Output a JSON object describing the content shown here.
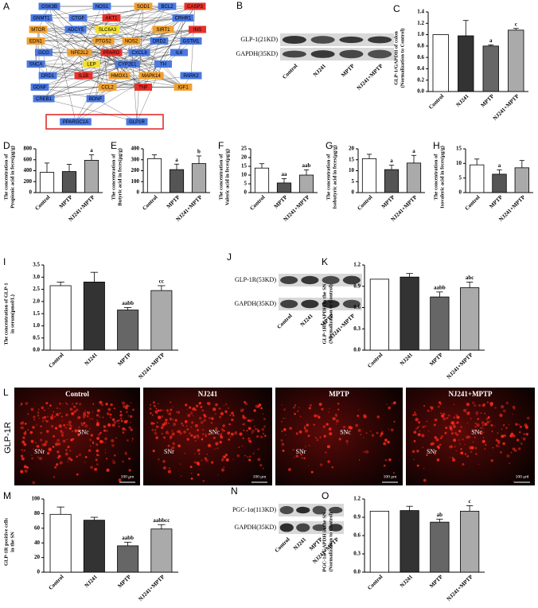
{
  "network": {
    "label": "A",
    "nodes": [
      {
        "name": "GSK3B",
        "color": "#4a78e0"
      },
      {
        "name": "NOS1",
        "color": "#4a78e0"
      },
      {
        "name": "SOD1",
        "color": "#f0a030"
      },
      {
        "name": "BCL2",
        "color": "#4a78e0"
      },
      {
        "name": "CASP3",
        "color": "#e8302a"
      },
      {
        "name": "GNMT1",
        "color": "#4a78e0"
      },
      {
        "name": "CTGF",
        "color": "#4a78e0"
      },
      {
        "name": "AKT1",
        "color": "#e8302a"
      },
      {
        "name": "CRHR1",
        "color": "#4a78e0"
      },
      {
        "name": "MTOR",
        "color": "#f0a030"
      },
      {
        "name": "ADCY5",
        "color": "#4a78e0"
      },
      {
        "name": "SLC6A3",
        "color": "#f2e030"
      },
      {
        "name": "SIRT1",
        "color": "#f0a030"
      },
      {
        "name": "INS",
        "color": "#e8302a"
      },
      {
        "name": "EDN1",
        "color": "#f0a030"
      },
      {
        "name": "PTGS2",
        "color": "#f0a030"
      },
      {
        "name": "NOS2",
        "color": "#f0a030"
      },
      {
        "name": "DRD2",
        "color": "#4a78e0"
      },
      {
        "name": "GSTM1",
        "color": "#4a78e0"
      },
      {
        "name": "GCG",
        "color": "#4a78e0"
      },
      {
        "name": "NFE2L2",
        "color": "#f0a030"
      },
      {
        "name": "PPARG",
        "color": "#e8302a"
      },
      {
        "name": "CXCL8",
        "color": "#4a78e0"
      },
      {
        "name": "IL6",
        "color": "#4a78e0"
      },
      {
        "name": "SNCA",
        "color": "#4a78e0"
      },
      {
        "name": "LEP",
        "color": "#f2e030"
      },
      {
        "name": "CYP2E1",
        "color": "#4a78e0"
      },
      {
        "name": "TH",
        "color": "#4a78e0"
      },
      {
        "name": "DRD1",
        "color": "#4a78e0"
      },
      {
        "name": "IL1B",
        "color": "#e8302a"
      },
      {
        "name": "HMOX1",
        "color": "#f0a030"
      },
      {
        "name": "MAPK14",
        "color": "#f0a030"
      },
      {
        "name": "PARK2",
        "color": "#4a78e0"
      },
      {
        "name": "GDNF",
        "color": "#4a78e0"
      },
      {
        "name": "CCL2",
        "color": "#f0a030"
      },
      {
        "name": "TNF",
        "color": "#e8302a"
      },
      {
        "name": "IGF1",
        "color": "#f0a030"
      },
      {
        "name": "CREB1",
        "color": "#4a78e0"
      },
      {
        "name": "BDNF",
        "color": "#4a78e0"
      },
      {
        "name": "PPARGC1A",
        "color": "#4a78e0"
      },
      {
        "name": "GLP1R",
        "color": "#4a78e0"
      }
    ]
  },
  "blots": [
    {
      "label": "B",
      "rows": [
        "GLP-1(21KD)",
        "GAPDH(35KD)"
      ],
      "lanes": [
        "Control",
        "NJ241",
        "MPTP",
        "NJ241+MPTP"
      ]
    },
    {
      "label": "J",
      "rows": [
        "GLP-1R(53KD)",
        "GAPDH(35KD)"
      ],
      "lanes": [
        "Control",
        "NJ241",
        "MPTP",
        "NJ241+MPTP"
      ]
    },
    {
      "label": "N",
      "rows": [
        "PGC-1α(113KD)",
        "GAPDH(35KD)"
      ],
      "lanes": [
        "Control",
        "NJ241",
        "MPTP",
        "NJ241+MPTP"
      ]
    }
  ],
  "images": {
    "label": "L",
    "row_label": "GLP-1R",
    "panels": [
      {
        "title": "Control",
        "regions": [
          "SNc",
          "SNr"
        ],
        "scale": "100 μm"
      },
      {
        "title": "NJ241",
        "regions": [
          "SNc",
          "SNr"
        ],
        "scale": "100 μm"
      },
      {
        "title": "MPTP",
        "regions": [
          "SNc",
          "SNr"
        ],
        "scale": "100 μm"
      },
      {
        "title": "NJ241+MPTP",
        "regions": [
          "SNc",
          "SNr"
        ],
        "scale": "100 μm"
      }
    ]
  },
  "chart_data": [
    {
      "type": "bar",
      "label": "C",
      "ylabel": [
        "GLP-1/GAPDH of colon",
        "(Normalization to Control)"
      ],
      "categories": [
        "Control",
        "NJ241",
        "MPTP",
        "NJ241+MPTP"
      ],
      "values": [
        1.0,
        0.98,
        0.8,
        1.08
      ],
      "errors": [
        null,
        0.27,
        0.02,
        0.03
      ],
      "annotations": [
        null,
        null,
        "a",
        "c"
      ],
      "colors": [
        "#ffffff",
        "#333333",
        "#666666",
        "#aaaaaa"
      ],
      "ylim": [
        0,
        1.4
      ],
      "yticks": [
        {
          "value": 0,
          "label": "0.0"
        },
        {
          "value": 0.2,
          "label": "0.2"
        },
        {
          "value": 0.4,
          "label": "0.4"
        },
        {
          "value": 0.6,
          "label": "0.6"
        },
        {
          "value": 0.8,
          "label": "0.8"
        },
        {
          "value": 1.0,
          "label": "1.0"
        },
        {
          "value": 1.2,
          "label": "1.2"
        },
        {
          "value": 1.4,
          "label": "1.4"
        }
      ]
    },
    {
      "type": "bar",
      "label": "D",
      "ylabel": [
        "The concentration of",
        "Propionic acid in feces(μg/g)"
      ],
      "categories": [
        "Control",
        "MPTP",
        "NJ241+MPTP"
      ],
      "values": [
        370,
        385,
        590
      ],
      "errors": [
        170,
        130,
        100
      ],
      "annotations": [
        null,
        null,
        "a"
      ],
      "colors": [
        "#ffffff",
        "#555555",
        "#aaaaaa"
      ],
      "ylim": [
        0,
        800
      ],
      "yticks": [
        0,
        200,
        400,
        600,
        800
      ]
    },
    {
      "type": "bar",
      "label": "E",
      "ylabel": [
        "The concentration of",
        "Butyric acid in feces(μg/g)"
      ],
      "categories": [
        "Control",
        "MPTP",
        "NJ241+MPTP"
      ],
      "values": [
        310,
        210,
        265
      ],
      "errors": [
        35,
        50,
        70
      ],
      "annotations": [
        null,
        "a",
        "b"
      ],
      "colors": [
        "#ffffff",
        "#555555",
        "#aaaaaa"
      ],
      "ylim": [
        0,
        400
      ],
      "yticks": [
        0,
        100,
        200,
        300,
        400
      ]
    },
    {
      "type": "bar",
      "label": "F",
      "ylabel": [
        "The concentration of",
        "Valeric acid in feces(μg/g)"
      ],
      "categories": [
        "Control",
        "MPTP",
        "NJ241+MPTP"
      ],
      "values": [
        14,
        5.5,
        10
      ],
      "errors": [
        2.5,
        2.5,
        3
      ],
      "annotations": [
        null,
        "aa",
        "aab"
      ],
      "colors": [
        "#ffffff",
        "#555555",
        "#aaaaaa"
      ],
      "ylim": [
        0,
        25
      ],
      "yticks": [
        0,
        5,
        10,
        15,
        20,
        25
      ]
    },
    {
      "type": "bar",
      "label": "G",
      "ylabel": [
        "The concentration of",
        "Isobutyric acid in feces(μg/g)"
      ],
      "categories": [
        "Control",
        "MPTP",
        "NJ241+MPTP"
      ],
      "values": [
        15.5,
        10.5,
        13.5
      ],
      "errors": [
        2,
        2,
        3.5
      ],
      "annotations": [
        null,
        "a",
        "a"
      ],
      "colors": [
        "#ffffff",
        "#555555",
        "#aaaaaa"
      ],
      "ylim": [
        0,
        20
      ],
      "yticks": [
        0,
        5,
        10,
        15,
        20
      ]
    },
    {
      "type": "bar",
      "label": "H",
      "ylabel": [
        "The concentration of",
        "Isovaleric acid in feces(μg/g)"
      ],
      "categories": [
        "Control",
        "MPTP",
        "NJ241+MPTP"
      ],
      "values": [
        9.5,
        6.3,
        8.5
      ],
      "errors": [
        2,
        1.5,
        2.5
      ],
      "annotations": [
        null,
        "a",
        null
      ],
      "colors": [
        "#ffffff",
        "#555555",
        "#aaaaaa"
      ],
      "ylim": [
        0,
        15
      ],
      "yticks": [
        0,
        5,
        10,
        15
      ]
    },
    {
      "type": "bar",
      "label": "I",
      "ylabel": [
        "The concentration of GLP-1",
        "in serum(pmol/L)"
      ],
      "categories": [
        "Control",
        "NJ241",
        "MPTP",
        "NJ241+MPTP"
      ],
      "values": [
        2.65,
        2.8,
        1.65,
        2.45
      ],
      "errors": [
        0.15,
        0.4,
        0.1,
        0.2
      ],
      "annotations": [
        null,
        null,
        "aabb",
        "cc"
      ],
      "colors": [
        "#ffffff",
        "#333333",
        "#666666",
        "#aaaaaa"
      ],
      "ylim": [
        0,
        3.5
      ],
      "yticks": [
        {
          "value": 0,
          "label": "0.0"
        },
        {
          "value": 0.5,
          "label": "0.5"
        },
        {
          "value": 1.0,
          "label": "1.0"
        },
        {
          "value": 1.5,
          "label": "1.5"
        },
        {
          "value": 2.0,
          "label": "2.0"
        },
        {
          "value": 2.5,
          "label": "2.5"
        },
        {
          "value": 3.0,
          "label": "3.0"
        },
        {
          "value": 3.5,
          "label": "3.5"
        }
      ]
    },
    {
      "type": "bar",
      "label": "K",
      "ylabel": [
        "GLP-1R/GAPDH in the SN",
        "(Normalization to Control)"
      ],
      "categories": [
        "Control",
        "NJ241",
        "MPTP",
        "NJ241+MPTP"
      ],
      "values": [
        1.0,
        1.03,
        0.75,
        0.88
      ],
      "errors": [
        null,
        0.05,
        0.07,
        0.08
      ],
      "annotations": [
        null,
        null,
        "aabb",
        "abc"
      ],
      "colors": [
        "#ffffff",
        "#333333",
        "#666666",
        "#aaaaaa"
      ],
      "ylim": [
        0,
        1.2
      ],
      "yticks": [
        {
          "value": 0,
          "label": "0.0"
        },
        {
          "value": 0.3,
          "label": "0.3"
        },
        {
          "value": 0.6,
          "label": "0.6"
        },
        {
          "value": 0.9,
          "label": "0.9"
        },
        {
          "value": 1.2,
          "label": "1.2"
        }
      ]
    },
    {
      "type": "bar",
      "label": "M",
      "ylabel": [
        "GLP-1R positive cells",
        "in the SN"
      ],
      "categories": [
        "Control",
        "NJ241",
        "MPTP",
        "NJ241+MPTP"
      ],
      "values": [
        79,
        71,
        36,
        59
      ],
      "errors": [
        10,
        4,
        5,
        6
      ],
      "annotations": [
        null,
        null,
        "aabb",
        "aabbcc"
      ],
      "colors": [
        "#ffffff",
        "#333333",
        "#666666",
        "#aaaaaa"
      ],
      "ylim": [
        0,
        100
      ],
      "yticks": [
        0,
        20,
        40,
        60,
        80,
        100
      ]
    },
    {
      "type": "bar",
      "label": "O",
      "ylabel": [
        "PGC-1α/GAPDH in the SN",
        "(Normalization to Control)"
      ],
      "categories": [
        "Control",
        "NJ241",
        "MPTP",
        "NJ241+MPTP"
      ],
      "values": [
        1.0,
        1.01,
        0.82,
        1.0
      ],
      "errors": [
        null,
        0.07,
        0.05,
        0.09
      ],
      "annotations": [
        null,
        null,
        "ab",
        "c"
      ],
      "colors": [
        "#ffffff",
        "#333333",
        "#666666",
        "#aaaaaa"
      ],
      "ylim": [
        0,
        1.2
      ],
      "yticks": [
        {
          "value": 0,
          "label": "0.0"
        },
        {
          "value": 0.3,
          "label": "0.3"
        },
        {
          "value": 0.6,
          "label": "0.6"
        },
        {
          "value": 0.9,
          "label": "0.9"
        },
        {
          "value": 1.2,
          "label": "1.2"
        }
      ]
    }
  ]
}
